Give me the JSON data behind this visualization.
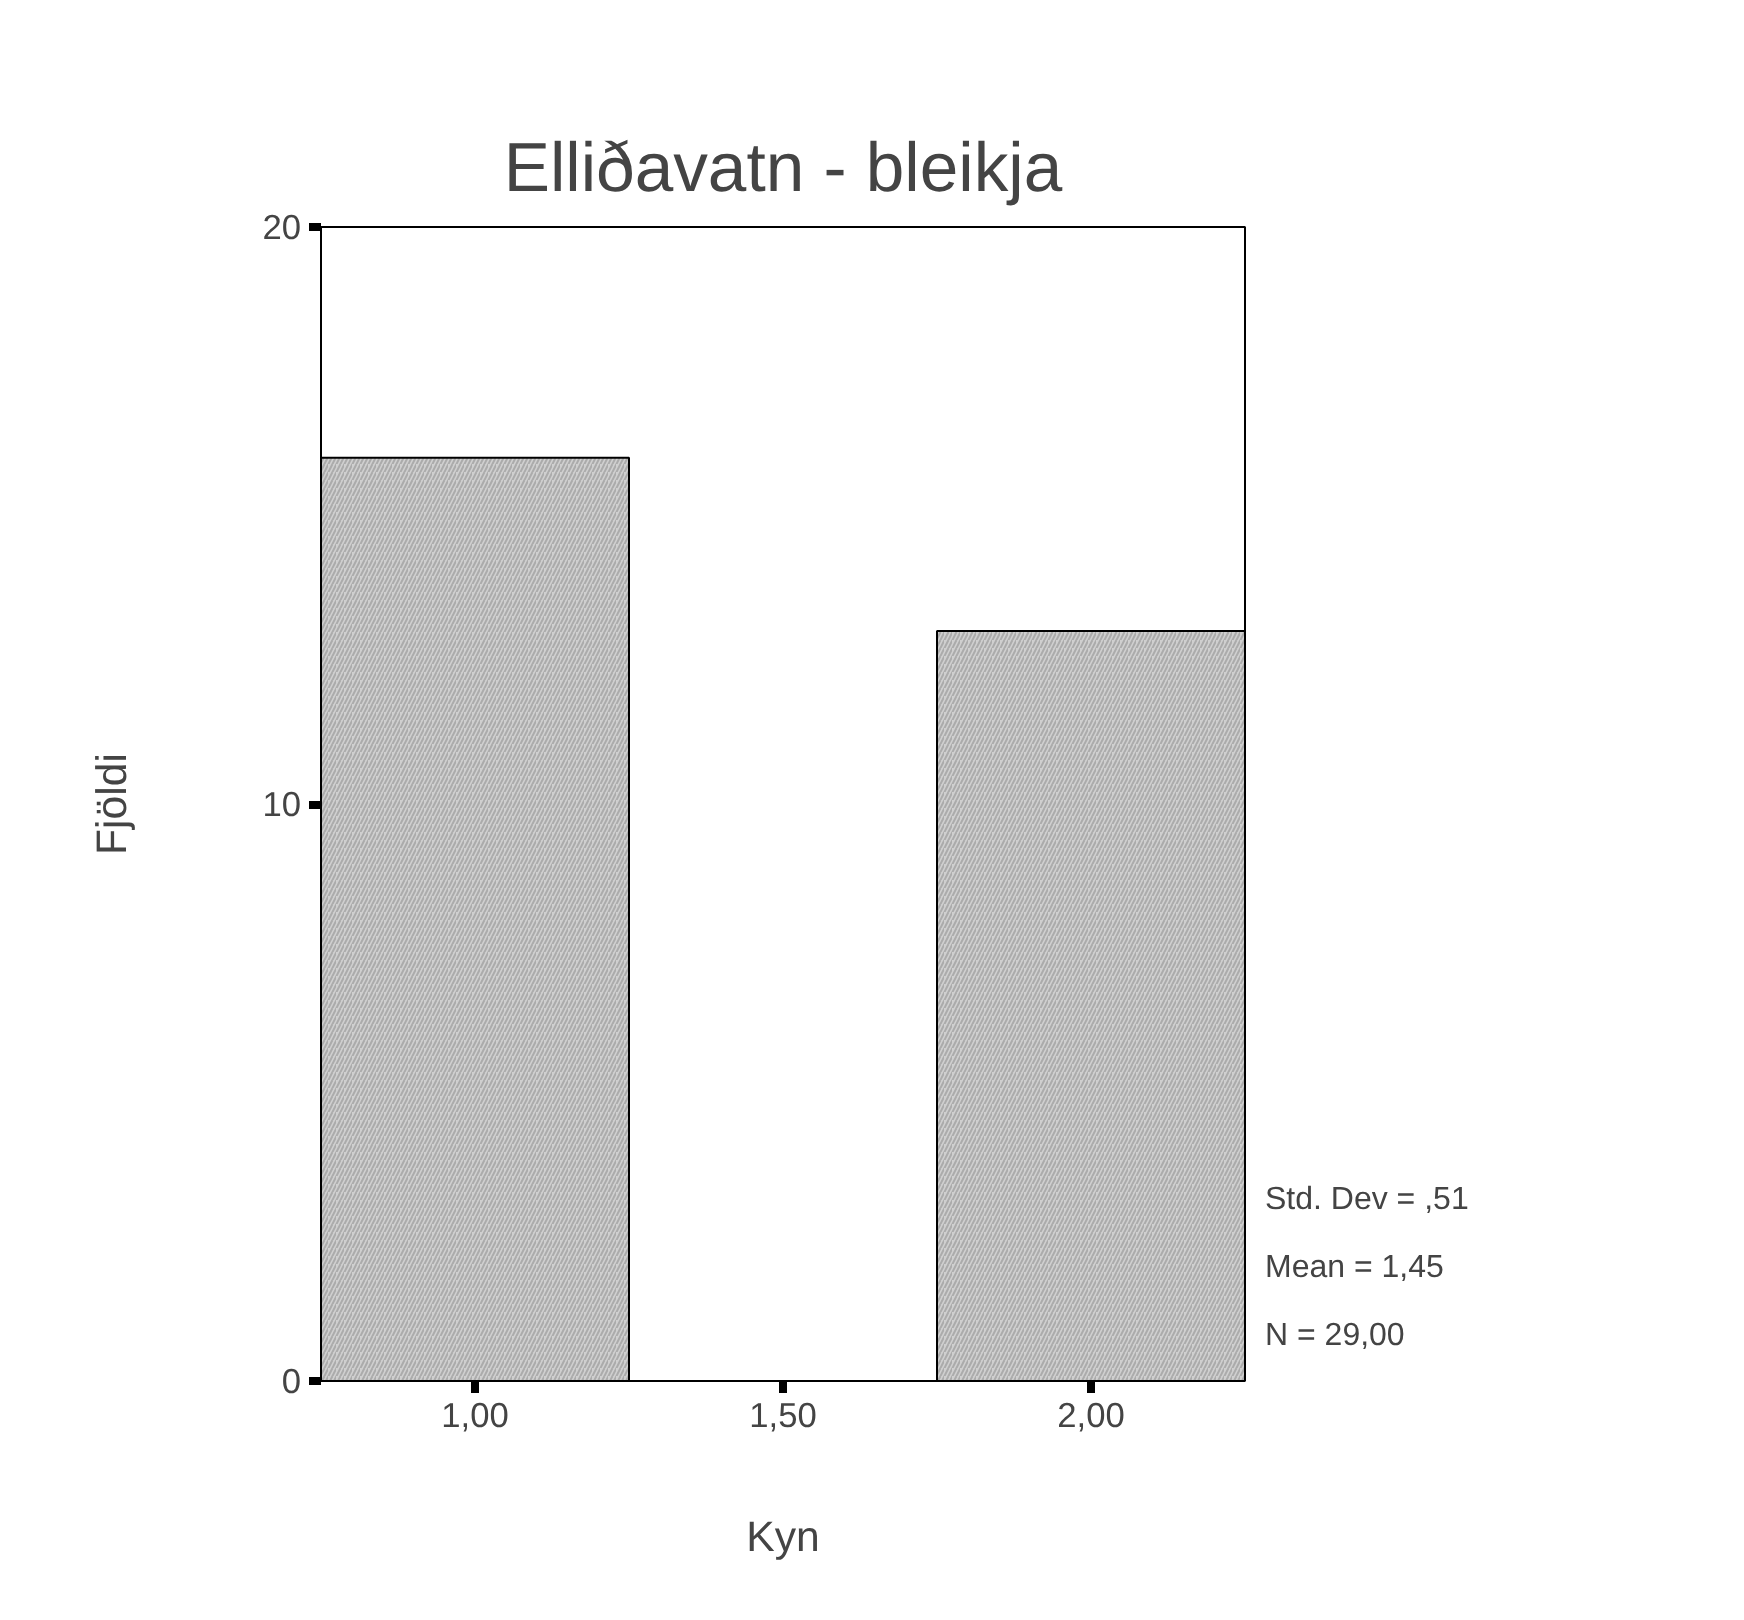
{
  "chart_data": {
    "type": "histogram",
    "title": "Elliðavatn - bleikja",
    "xlabel": "Kyn",
    "ylabel": "Fjöldi",
    "bins": [
      0.75,
      1.25,
      1.75,
      2.25
    ],
    "values": [
      16,
      0,
      13
    ],
    "color": "#cfcfcf",
    "xlim": [
      0.75,
      2.25
    ],
    "xticks": [
      {
        "value": 1,
        "label": "1,00"
      },
      {
        "value": 1.5,
        "label": "1,50"
      },
      {
        "value": 2,
        "label": "2,00"
      }
    ],
    "ylim": [
      0,
      20
    ],
    "yticks": [
      0,
      10,
      20
    ],
    "grid": false,
    "annotations": [
      "Std. Dev = ,51",
      "Mean = 1,45",
      "N = 29,00"
    ]
  }
}
